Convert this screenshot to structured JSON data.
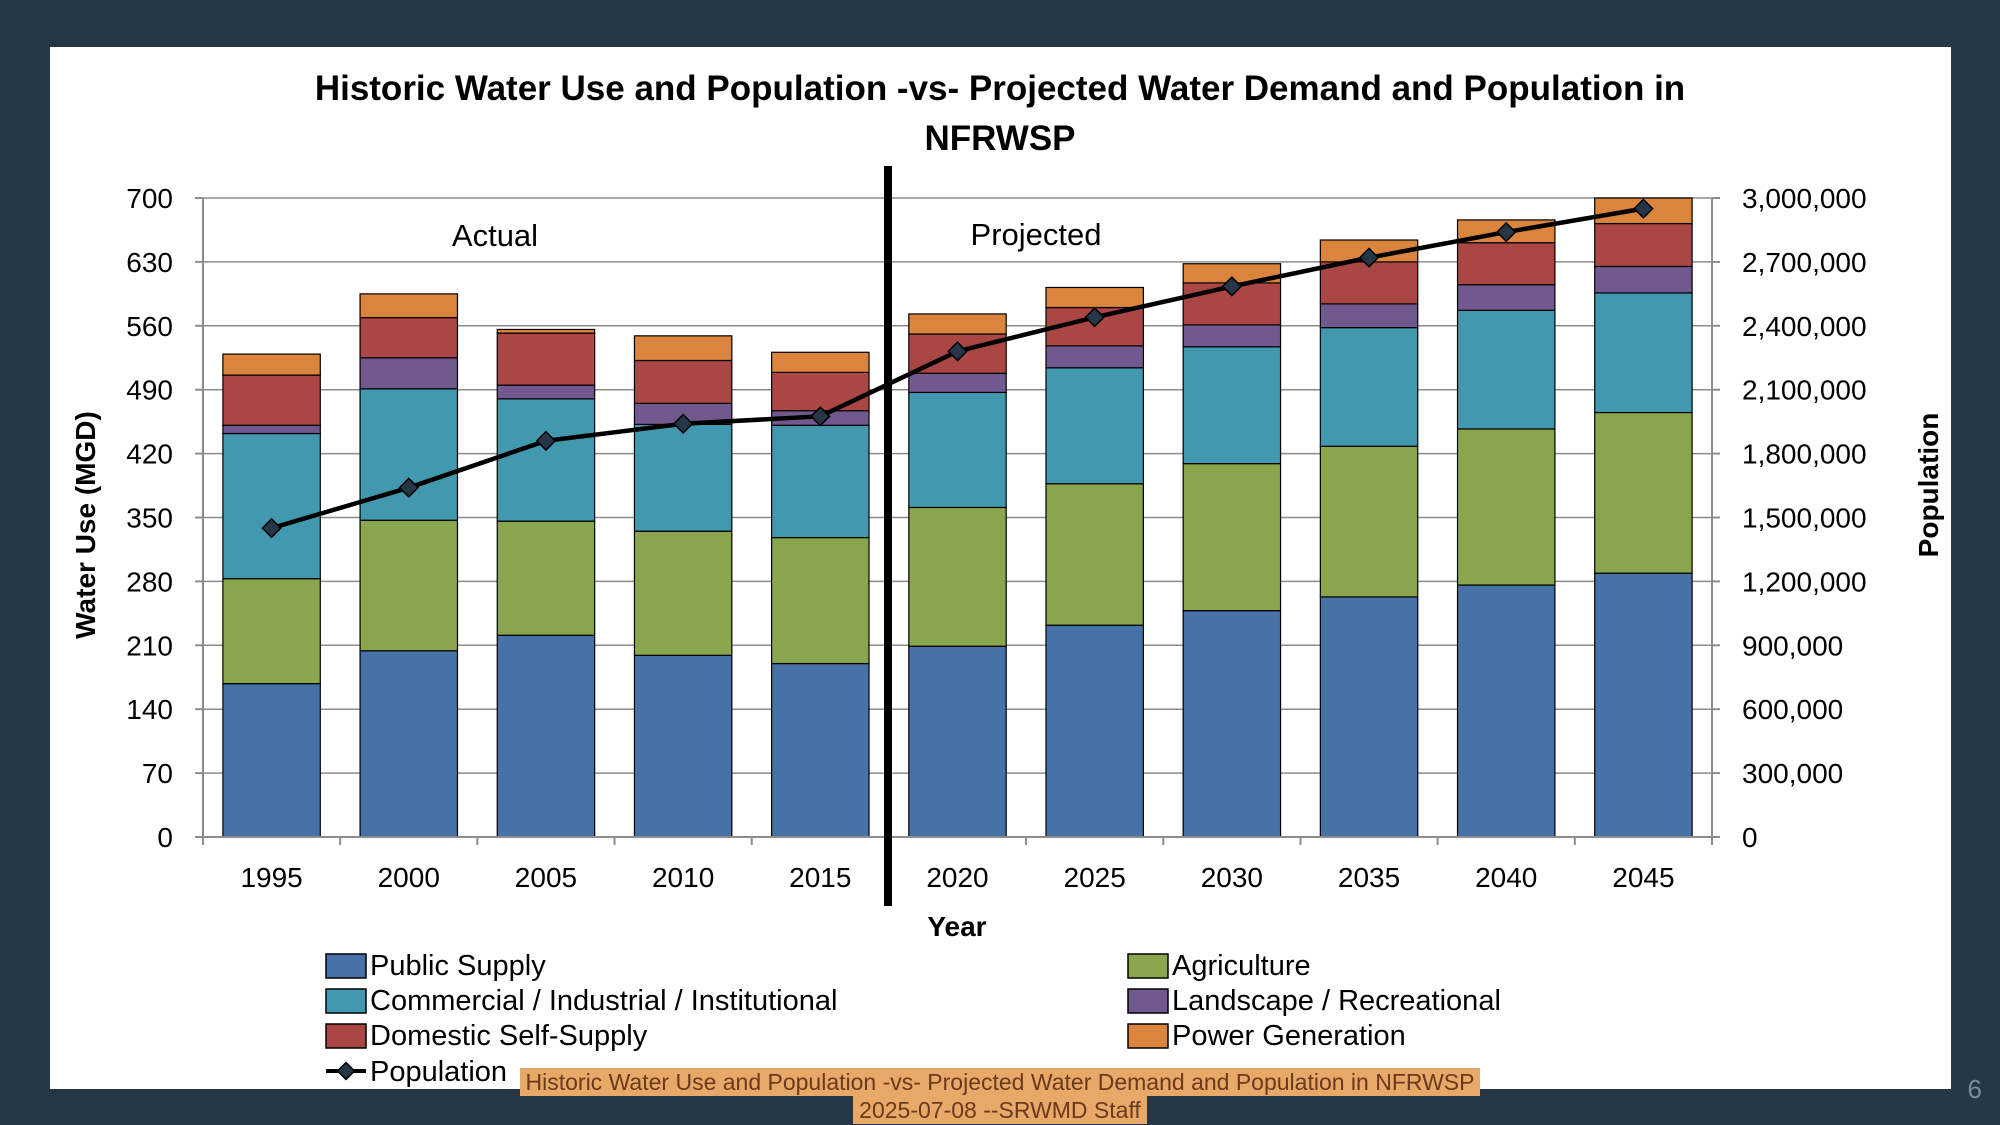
{
  "chart_data": {
    "type": "bar",
    "title": "Historic Water Use and Population -vs- Projected Water Demand and Population in NFRWSP",
    "title_lines": [
      "Historic Water Use and Population -vs- Projected Water Demand and Population in",
      "NFRWSP"
    ],
    "xlabel": "Year",
    "ylabel": "Water Use (MGD)",
    "y2label": "Population",
    "ylim": [
      0,
      700
    ],
    "y2lim": [
      0,
      3000000
    ],
    "yticks": [
      "0",
      "70",
      "140",
      "210",
      "280",
      "350",
      "420",
      "490",
      "560",
      "630",
      "700"
    ],
    "y2ticks": [
      "0",
      "300,000",
      "600,000",
      "900,000",
      "1,200,000",
      "1,500,000",
      "1,800,000",
      "2,100,000",
      "2,400,000",
      "2,700,000",
      "3,000,000"
    ],
    "categories": [
      "1995",
      "2000",
      "2005",
      "2010",
      "2015",
      "2020",
      "2025",
      "2030",
      "2035",
      "2040",
      "2045"
    ],
    "stacked": true,
    "grid": true,
    "legend_position": "bottom",
    "annotations": [
      "Actual",
      "Projected"
    ],
    "divider_after_category": "2015",
    "series": [
      {
        "name": "Public Supply",
        "color": "#4672a8",
        "values": [
          168,
          204,
          221,
          199,
          190,
          209,
          232,
          248,
          263,
          276,
          289
        ]
      },
      {
        "name": "Agriculture",
        "color": "#89a54e",
        "values": [
          115,
          143,
          125,
          136,
          138,
          152,
          155,
          161,
          165,
          171,
          176
        ]
      },
      {
        "name": "Commercial / Industrial / Institutional",
        "color": "#4198af",
        "values": [
          159,
          144,
          134,
          117,
          123,
          126,
          127,
          128,
          130,
          130,
          131
        ]
      },
      {
        "name": "Landscape / Recreational",
        "color": "#71588f",
        "values": [
          9,
          34,
          15,
          23,
          16,
          21,
          24,
          24,
          26,
          28,
          29
        ]
      },
      {
        "name": "Domestic Self-Supply",
        "color": "#aa4643",
        "values": [
          55,
          44,
          57,
          47,
          42,
          43,
          42,
          46,
          46,
          46,
          47
        ]
      },
      {
        "name": "Power Generation",
        "color": "#db843d",
        "values": [
          23,
          26,
          4,
          27,
          22,
          22,
          22,
          21,
          24,
          25,
          28
        ]
      }
    ],
    "line_series": {
      "name": "Population",
      "axis": "right",
      "color": "#000000",
      "values": [
        1450000,
        1640000,
        1860000,
        1940000,
        1975000,
        2280000,
        2440000,
        2585000,
        2720000,
        2840000,
        2950000
      ]
    }
  },
  "caption": {
    "line1": "Historic Water Use and Population -vs- Projected Water Demand and Population in NFRWSP",
    "line2": "2025-07-08 --SRWMD Staff"
  },
  "page_number": "6"
}
